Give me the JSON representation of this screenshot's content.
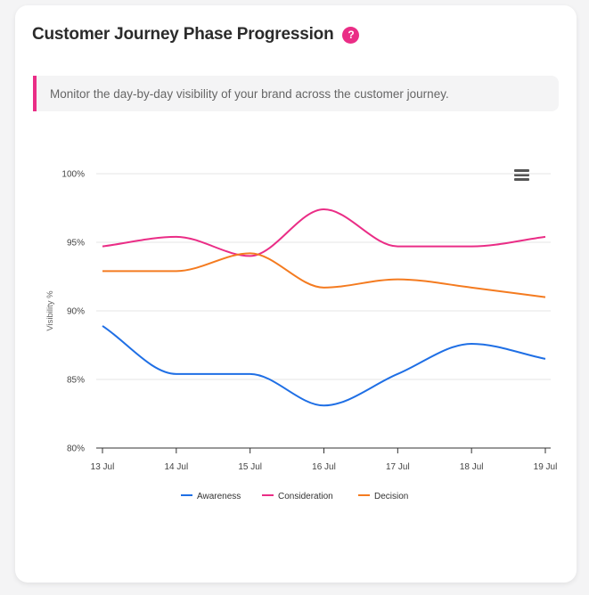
{
  "card": {
    "title": "Customer Journey Phase Progression",
    "help_glyph": "?",
    "description": "Monitor the day-by-day visibility of your brand across the customer journey."
  },
  "menu": {
    "icon": "hamburger-menu-icon"
  },
  "chart_data": {
    "type": "line",
    "categories": [
      "13 Jul",
      "14 Jul",
      "15 Jul",
      "16 Jul",
      "17 Jul",
      "18 Jul",
      "19 Jul"
    ],
    "ylabel": "Visibility %",
    "ylim": [
      80,
      100
    ],
    "yticks": [
      "80%",
      "85%",
      "90%",
      "95%",
      "100%"
    ],
    "ytick_values": [
      80,
      85,
      90,
      95,
      100
    ],
    "grid": true,
    "legend_position": "bottom",
    "smooth": true,
    "series": [
      {
        "name": "Awareness",
        "color": "#1f6fe5",
        "values": [
          88.9,
          85.4,
          85.4,
          83.1,
          85.4,
          87.6,
          86.5
        ]
      },
      {
        "name": "Consideration",
        "color": "#ea2d86",
        "values": [
          94.7,
          95.4,
          94.0,
          97.4,
          94.7,
          94.7,
          95.4
        ]
      },
      {
        "name": "Decision",
        "color": "#f47b20",
        "values": [
          92.9,
          92.9,
          94.2,
          91.7,
          92.3,
          91.7,
          91.0
        ]
      }
    ]
  }
}
